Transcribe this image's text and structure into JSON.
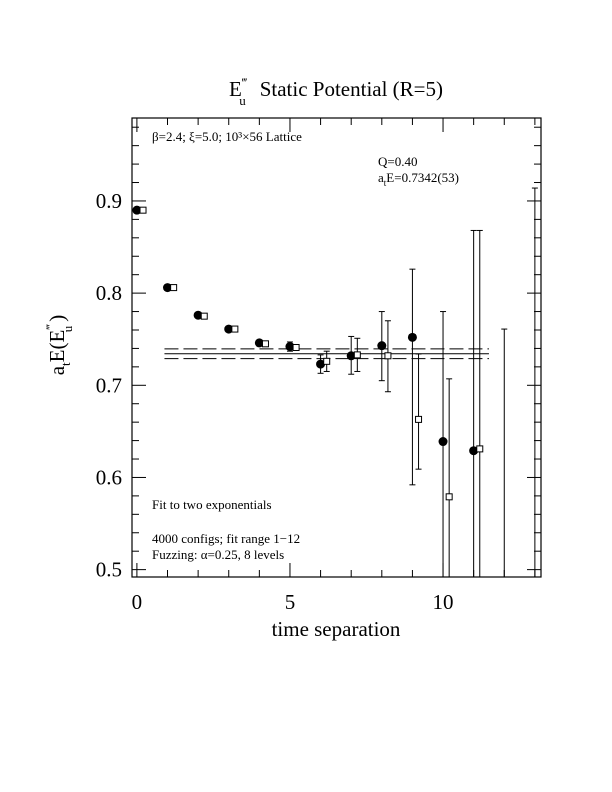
{
  "chart_data": {
    "type": "scatter",
    "title": {
      "symbol": "E",
      "superscript": "‴",
      "subscript": "u",
      "text": "Static Potential (R=5)"
    },
    "x_label": "time separation",
    "y_label": {
      "a": "a",
      "a_sub": "t",
      "main": "E(E",
      "sup": "‴",
      "sub": "u",
      "close": ")"
    },
    "annotations": {
      "lattice": "β=2.4; ξ=5.0; 10³×56 Lattice",
      "q": "Q=0.40",
      "energy": {
        "a": "a",
        "sub": "t",
        "rest": "E=0.7342(53)"
      },
      "fit": "Fit to two exponentials",
      "configs": "4000 configs; fit range 1−12",
      "fuzzing": "Fuzzing: α=0.25, 8 levels"
    },
    "xlim": [
      -0.16,
      13.2
    ],
    "ylim": [
      0.492,
      0.99
    ],
    "xticks": [
      0,
      5,
      10
    ],
    "yticks": [
      0.5,
      0.6,
      0.7,
      0.8,
      0.9
    ],
    "xticks_minor": [
      1,
      2,
      3,
      4,
      6,
      7,
      8,
      9,
      11,
      12,
      13
    ],
    "yticks_minor": [
      0.52,
      0.54,
      0.56,
      0.58,
      0.62,
      0.64,
      0.66,
      0.68,
      0.72,
      0.74,
      0.76,
      0.78,
      0.82,
      0.84,
      0.86,
      0.88,
      0.92,
      0.94,
      0.96,
      0.98
    ],
    "series": [
      {
        "marker": "circle",
        "color": "#000000",
        "x": [
          0,
          1,
          2,
          3,
          4,
          5,
          6,
          7,
          8,
          9,
          10,
          11,
          12,
          13
        ],
        "values": [
          0.89,
          0.806,
          0.776,
          0.761,
          0.746,
          0.742,
          0.723,
          0.732,
          0.743,
          0.752,
          0.639,
          0.629,
          null,
          null
        ],
        "upper": [
          0.892,
          0.808,
          0.778,
          0.763,
          0.748,
          0.747,
          0.733,
          0.753,
          0.78,
          0.826,
          0.78,
          0.868,
          0.761,
          0.914
        ],
        "lower": [
          0.888,
          0.804,
          0.774,
          0.759,
          0.744,
          0.737,
          0.713,
          0.712,
          0.705,
          0.592,
          null,
          null,
          null,
          null
        ]
      },
      {
        "marker": "square",
        "color": "#000000",
        "x": [
          0.2,
          1.2,
          2.2,
          3.2,
          4.2,
          5.2,
          6.2,
          7.2,
          8.2,
          9.2,
          10.2,
          11.2
        ],
        "values": [
          0.89,
          0.806,
          0.775,
          0.761,
          0.745,
          0.741,
          0.726,
          0.733,
          0.732,
          0.663,
          0.579,
          0.631
        ],
        "upper": [
          0.892,
          0.808,
          0.777,
          0.763,
          0.747,
          0.744,
          0.737,
          0.751,
          0.77,
          0.734,
          0.707,
          0.868
        ],
        "lower": [
          0.888,
          0.804,
          0.773,
          0.759,
          0.743,
          0.738,
          0.715,
          0.715,
          0.693,
          0.609,
          null,
          null
        ]
      }
    ],
    "fit": {
      "value": 0.7342,
      "error": 0.0053,
      "x_range": [
        0.9,
        11.5
      ]
    }
  }
}
